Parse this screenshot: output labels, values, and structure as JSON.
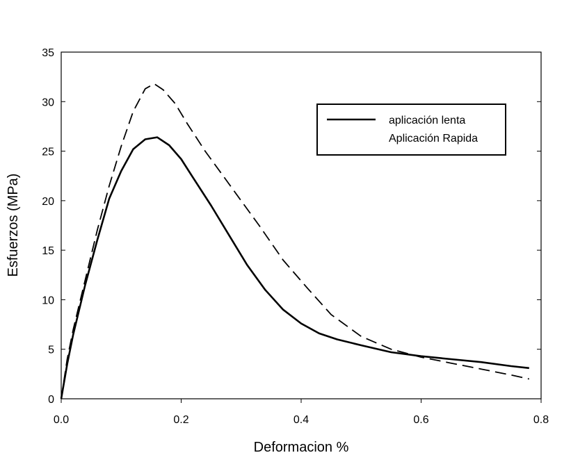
{
  "chart_data": {
    "type": "line",
    "title": "",
    "xlabel": "Deformacion %",
    "ylabel": "Esfuerzos (MPa)",
    "xlim": [
      0,
      0.8
    ],
    "ylim": [
      0,
      35
    ],
    "x_ticks": [
      "0.0",
      "0.2",
      "0.4",
      "0.6",
      "0.8"
    ],
    "y_ticks": [
      "0",
      "5",
      "10",
      "15",
      "20",
      "25",
      "30",
      "35"
    ],
    "grid": false,
    "legend_position": "top-right",
    "series": [
      {
        "name": "aplicación lenta",
        "style": "solid",
        "color": "#000000",
        "points": [
          [
            0.0,
            0.0
          ],
          [
            0.01,
            3.5
          ],
          [
            0.02,
            6.5
          ],
          [
            0.04,
            11.5
          ],
          [
            0.06,
            16.0
          ],
          [
            0.08,
            20.2
          ],
          [
            0.1,
            23.0
          ],
          [
            0.12,
            25.2
          ],
          [
            0.14,
            26.2
          ],
          [
            0.16,
            26.4
          ],
          [
            0.18,
            25.6
          ],
          [
            0.2,
            24.2
          ],
          [
            0.22,
            22.3
          ],
          [
            0.25,
            19.5
          ],
          [
            0.28,
            16.5
          ],
          [
            0.31,
            13.5
          ],
          [
            0.34,
            11.0
          ],
          [
            0.37,
            9.0
          ],
          [
            0.4,
            7.6
          ],
          [
            0.43,
            6.6
          ],
          [
            0.46,
            6.0
          ],
          [
            0.5,
            5.4
          ],
          [
            0.55,
            4.7
          ],
          [
            0.6,
            4.3
          ],
          [
            0.65,
            4.0
          ],
          [
            0.7,
            3.7
          ],
          [
            0.75,
            3.3
          ],
          [
            0.78,
            3.1
          ]
        ]
      },
      {
        "name": "Aplicación Rapida",
        "style": "dashed",
        "color": "#000000",
        "points": [
          [
            0.0,
            0.0
          ],
          [
            0.01,
            4.0
          ],
          [
            0.02,
            7.0
          ],
          [
            0.04,
            12.0
          ],
          [
            0.06,
            17.0
          ],
          [
            0.08,
            21.5
          ],
          [
            0.1,
            25.5
          ],
          [
            0.12,
            29.0
          ],
          [
            0.14,
            31.3
          ],
          [
            0.155,
            31.8
          ],
          [
            0.17,
            31.2
          ],
          [
            0.19,
            29.8
          ],
          [
            0.21,
            27.8
          ],
          [
            0.24,
            25.0
          ],
          [
            0.27,
            22.5
          ],
          [
            0.3,
            20.0
          ],
          [
            0.33,
            17.5
          ],
          [
            0.37,
            14.0
          ],
          [
            0.41,
            11.2
          ],
          [
            0.45,
            8.5
          ],
          [
            0.5,
            6.3
          ],
          [
            0.55,
            5.0
          ],
          [
            0.6,
            4.2
          ],
          [
            0.65,
            3.6
          ],
          [
            0.7,
            3.0
          ],
          [
            0.75,
            2.4
          ],
          [
            0.78,
            2.0
          ]
        ]
      }
    ]
  }
}
